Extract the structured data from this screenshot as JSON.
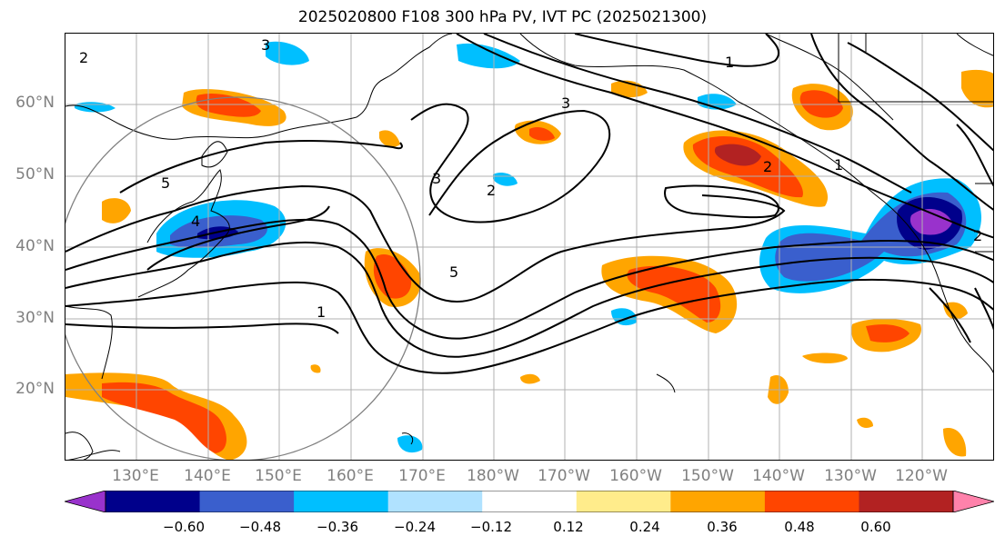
{
  "title": "2025020800 F108 300 hPa PV, IVT PC (2025021300)",
  "lat_labels": [
    "60°N",
    "50°N",
    "40°N",
    "30°N",
    "20°N"
  ],
  "lon_labels": [
    "130°E",
    "140°E",
    "150°E",
    "160°E",
    "170°E",
    "180°W",
    "170°W",
    "160°W",
    "150°W",
    "140°W",
    "130°W",
    "120°W"
  ],
  "contour_labels": [
    "3",
    "2",
    "5",
    "4",
    "3",
    "2",
    "5",
    "1",
    "1",
    "2",
    "1",
    "3",
    "2"
  ],
  "colorbar": {
    "ticks": [
      "−0.60",
      "−0.48",
      "−0.36",
      "−0.24",
      "−0.12",
      "0.12",
      "0.24",
      "0.36",
      "0.48",
      "0.60"
    ],
    "colors": [
      "#9932cc",
      "#00008b",
      "#3a5fcd",
      "#00bfff",
      "#b0e2ff",
      "#ffffff",
      "#ffec8b",
      "#ffa500",
      "#ff4500",
      "#b22222",
      "#ff82ab"
    ]
  }
}
